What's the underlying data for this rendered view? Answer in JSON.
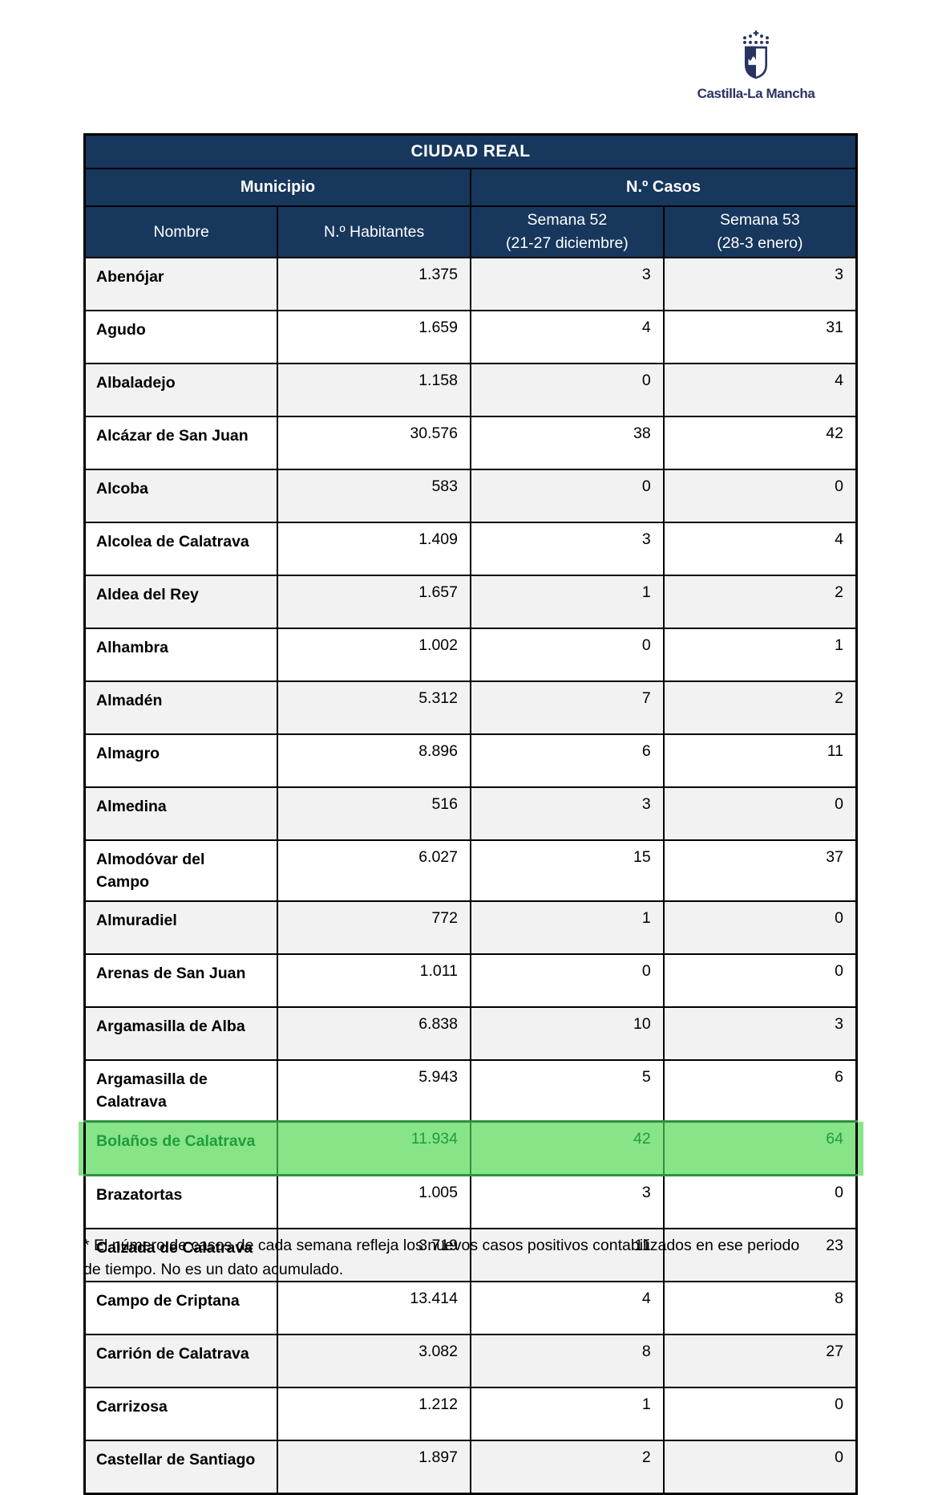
{
  "logo": {
    "wordmark": "Castilla-La Mancha"
  },
  "colors": {
    "header_navy": "#17375d",
    "logo_navy": "#293464",
    "alt_row_gray": "#f2f2f2",
    "highlight_bg": "#87e487",
    "highlight_text": "#1f9d3f",
    "highlight_border": "#2f9140"
  },
  "table": {
    "title": "CIUDAD REAL",
    "group_headers": {
      "municipio": "Municipio",
      "casos": "N.º Casos"
    },
    "columns": [
      "Nombre",
      "N.º Habitantes",
      "Semana 52\n(21-27 diciembre)",
      "Semana 53\n(28-3 enero)"
    ],
    "rows": [
      {
        "nombre": "Abenójar",
        "habitantes": "1.375",
        "semana52": "3",
        "semana53": "3",
        "highlight": false
      },
      {
        "nombre": "Agudo",
        "habitantes": "1.659",
        "semana52": "4",
        "semana53": "31",
        "highlight": false
      },
      {
        "nombre": "Albaladejo",
        "habitantes": "1.158",
        "semana52": "0",
        "semana53": "4",
        "highlight": false
      },
      {
        "nombre": "Alcázar de San Juan",
        "habitantes": "30.576",
        "semana52": "38",
        "semana53": "42",
        "highlight": false
      },
      {
        "nombre": "Alcoba",
        "habitantes": "583",
        "semana52": "0",
        "semana53": "0",
        "highlight": false
      },
      {
        "nombre": "Alcolea de Calatrava",
        "habitantes": "1.409",
        "semana52": "3",
        "semana53": "4",
        "highlight": false
      },
      {
        "nombre": "Aldea del Rey",
        "habitantes": "1.657",
        "semana52": "1",
        "semana53": "2",
        "highlight": false
      },
      {
        "nombre": "Alhambra",
        "habitantes": "1.002",
        "semana52": "0",
        "semana53": "1",
        "highlight": false
      },
      {
        "nombre": "Almadén",
        "habitantes": "5.312",
        "semana52": "7",
        "semana53": "2",
        "highlight": false
      },
      {
        "nombre": "Almagro",
        "habitantes": "8.896",
        "semana52": "6",
        "semana53": "11",
        "highlight": false
      },
      {
        "nombre": "Almedina",
        "habitantes": "516",
        "semana52": "3",
        "semana53": "0",
        "highlight": false
      },
      {
        "nombre": "Almodóvar del\nCampo",
        "habitantes": "6.027",
        "semana52": "15",
        "semana53": "37",
        "highlight": false
      },
      {
        "nombre": "Almuradiel",
        "habitantes": "772",
        "semana52": "1",
        "semana53": "0",
        "highlight": false
      },
      {
        "nombre": "Arenas de San Juan",
        "habitantes": "1.011",
        "semana52": "0",
        "semana53": "0",
        "highlight": false
      },
      {
        "nombre": "Argamasilla de Alba",
        "habitantes": "6.838",
        "semana52": "10",
        "semana53": "3",
        "highlight": false
      },
      {
        "nombre": "Argamasilla de\nCalatrava",
        "habitantes": "5.943",
        "semana52": "5",
        "semana53": "6",
        "highlight": false
      },
      {
        "nombre": "Bolaños de Calatrava",
        "habitantes": "11.934",
        "semana52": "42",
        "semana53": "64",
        "highlight": true
      },
      {
        "nombre": "Brazatortas",
        "habitantes": "1.005",
        "semana52": "3",
        "semana53": "0",
        "highlight": false
      },
      {
        "nombre": "Calzada de Calatrava",
        "habitantes": "3.719",
        "semana52": "11",
        "semana53": "23",
        "highlight": false
      },
      {
        "nombre": "Campo de Criptana",
        "habitantes": "13.414",
        "semana52": "4",
        "semana53": "8",
        "highlight": false
      },
      {
        "nombre": "Carrión de Calatrava",
        "habitantes": "3.082",
        "semana52": "8",
        "semana53": "27",
        "highlight": false
      },
      {
        "nombre": "Carrizosa",
        "habitantes": "1.212",
        "semana52": "1",
        "semana53": "0",
        "highlight": false
      },
      {
        "nombre": "Castellar de Santiago",
        "habitantes": "1.897",
        "semana52": "2",
        "semana53": "0",
        "highlight": false
      }
    ]
  },
  "footnote": "* El número de casos de cada semana refleja los nuevos casos positivos contabilizados en ese periodo\nde tiempo. No es un dato acumulado."
}
